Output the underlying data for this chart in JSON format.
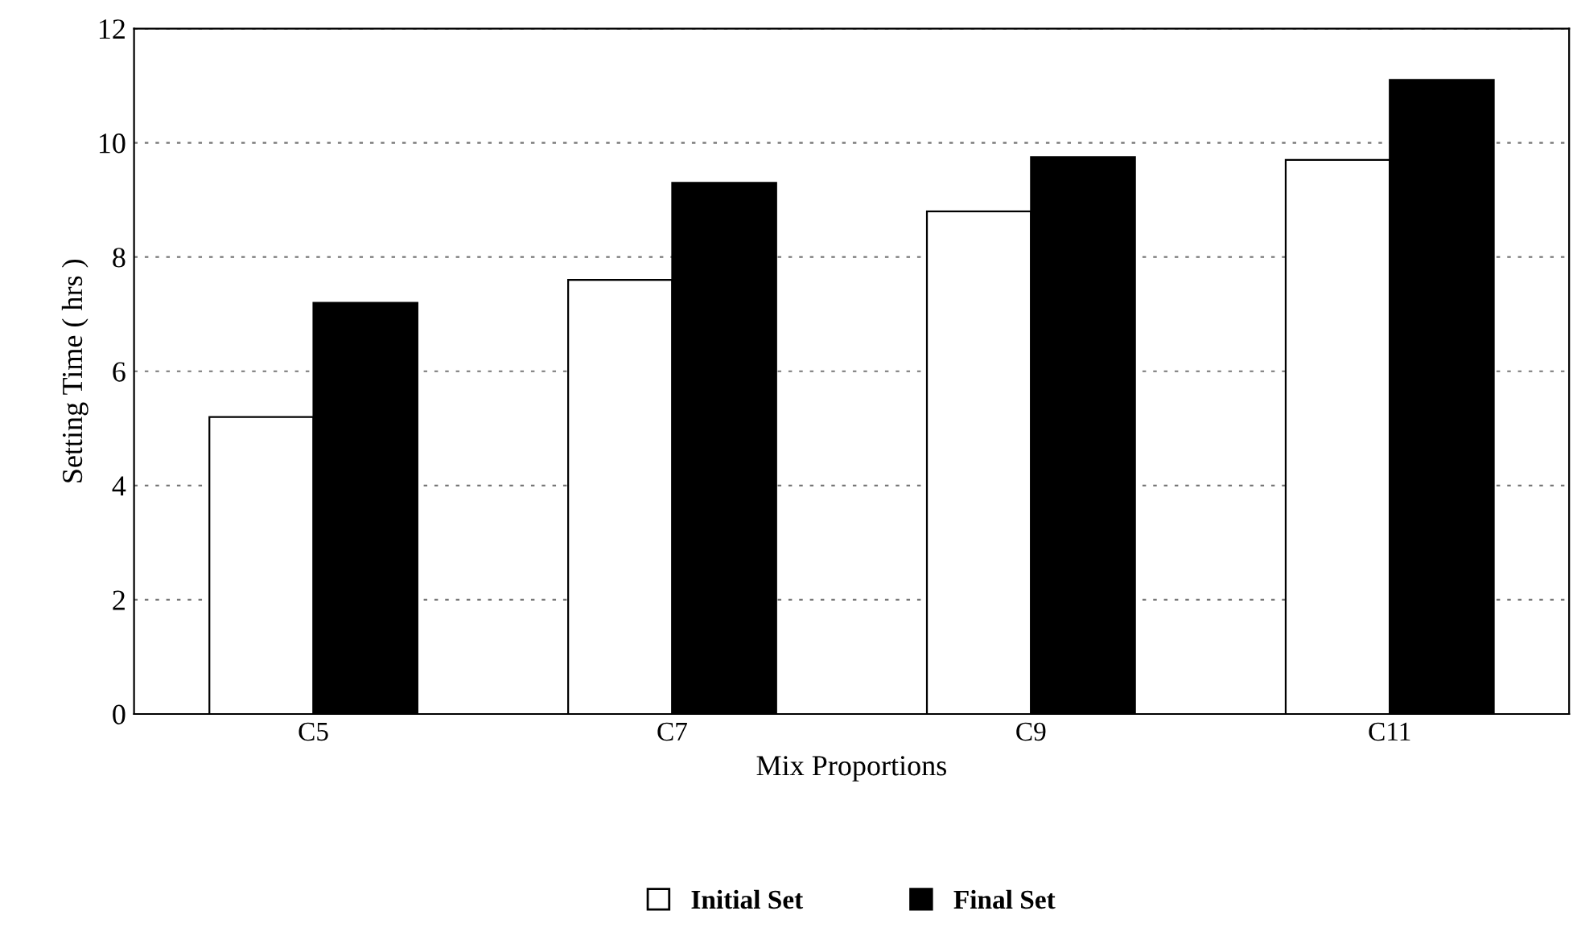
{
  "chart_data": {
    "type": "bar",
    "xlabel": "Mix Proportions",
    "ylabel": "Setting Time ( hrs )",
    "categories": [
      "C5",
      "C7",
      "C9",
      "C11"
    ],
    "series": [
      {
        "name": "Initial Set",
        "color": "#ffffff",
        "values": [
          5.2,
          7.6,
          8.8,
          9.7
        ]
      },
      {
        "name": "Final Set",
        "color": "#000000",
        "values": [
          7.2,
          9.3,
          9.75,
          11.1
        ]
      }
    ],
    "ylim": [
      0,
      12
    ],
    "yticks": [
      0,
      2,
      4,
      6,
      8,
      10,
      12
    ],
    "grid": "y",
    "legend": "bottom"
  }
}
